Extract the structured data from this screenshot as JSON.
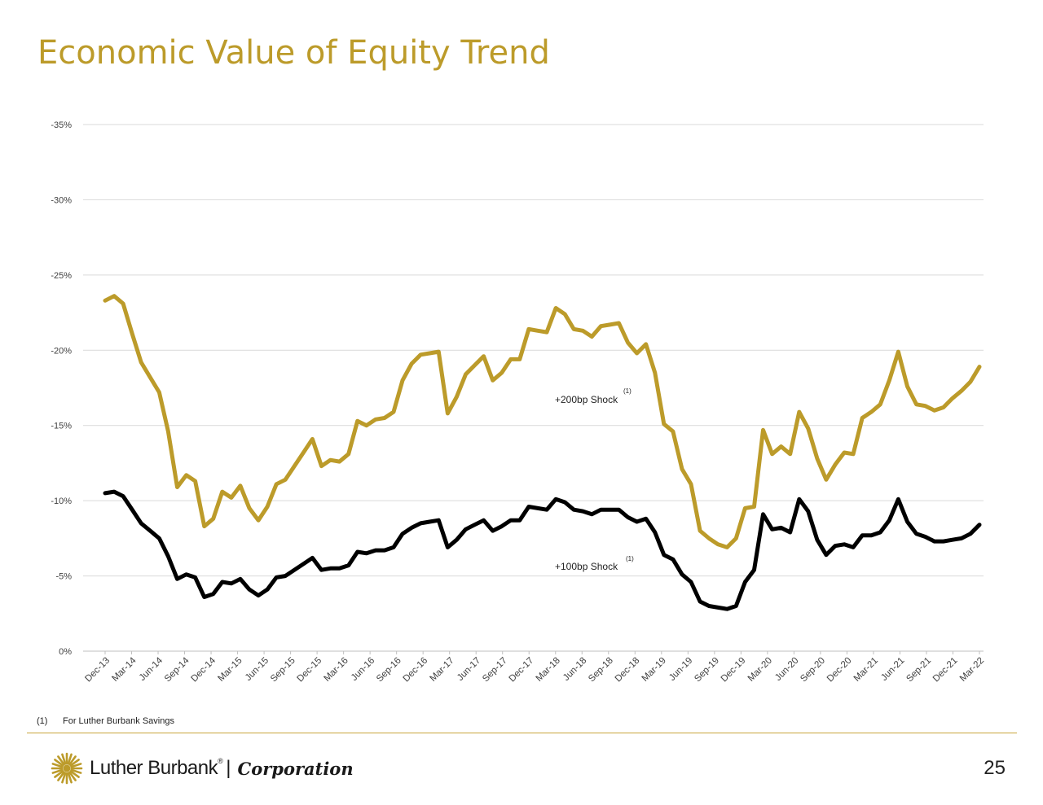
{
  "page": {
    "title": "Economic Value of Equity Trend",
    "footnote_marker": "(1)",
    "footnote_text": "For Luther Burbank Savings",
    "page_number": "25"
  },
  "brand": {
    "name": "Luther Burbank",
    "registered": "®",
    "separator": "|",
    "corporation": "Corporation",
    "accent_color": "#bc9b2a",
    "logo_icon": "sunburst-icon"
  },
  "chart_data": {
    "type": "line",
    "title": "",
    "xlabel": "",
    "ylabel": "",
    "y_ticks": [
      0,
      -5,
      -10,
      -15,
      -20,
      -25,
      -30,
      -35
    ],
    "y_tick_labels": [
      "0%",
      "-5%",
      "-10%",
      "-15%",
      "-20%",
      "-25%",
      "-30%",
      "-35%"
    ],
    "ylim": [
      0,
      -35
    ],
    "y_axis_inverted": true,
    "grid": true,
    "x_tick_labels": [
      "Dec-13",
      "Mar-14",
      "Jun-14",
      "Sep-14",
      "Dec-14",
      "Mar-15",
      "Jun-15",
      "Sep-15",
      "Dec-15",
      "Mar-16",
      "Jun-16",
      "Sep-16",
      "Dec-16",
      "Mar-17",
      "Jun-17",
      "Sep-17",
      "Dec-17",
      "Mar-18",
      "Jun-18",
      "Sep-18",
      "Dec-18",
      "Mar-19",
      "Jun-19",
      "Sep-19",
      "Dec-19",
      "Mar-20",
      "Jun-20",
      "Sep-20",
      "Dec-20",
      "Mar-21",
      "Jun-21",
      "Sep-21",
      "Dec-21",
      "Mar-22"
    ],
    "x_start": "Dec-13",
    "x_end": "Mar-22",
    "series": [
      {
        "name": "+200bp Shock",
        "label_superscript": "(1)",
        "color": "#bc9b2a",
        "values": [
          -23.3,
          -23.6,
          -23.1,
          -21.1,
          -19.2,
          -18.2,
          -17.2,
          -14.6,
          -10.9,
          -11.7,
          -11.3,
          -8.3,
          -8.8,
          -10.6,
          -10.2,
          -11.0,
          -9.5,
          -8.7,
          -9.6,
          -11.1,
          -11.4,
          -12.3,
          -13.2,
          -14.1,
          -12.3,
          -12.7,
          -12.6,
          -13.1,
          -15.3,
          -15.0,
          -15.4,
          -15.5,
          -15.9,
          -18.0,
          -19.1,
          -19.7,
          -19.8,
          -19.9,
          -15.8,
          -16.9,
          -18.4,
          -19.0,
          -19.6,
          -18.0,
          -18.5,
          -19.4,
          -19.4,
          -21.4,
          -21.3,
          -21.2,
          -22.8,
          -22.4,
          -21.4,
          -21.3,
          -20.9,
          -21.6,
          -21.7,
          -21.8,
          -20.5,
          -19.8,
          -20.4,
          -18.5,
          -15.1,
          -14.6,
          -12.1,
          -11.1,
          -8.0,
          -7.5,
          -7.1,
          -6.9,
          -7.5,
          -9.5,
          -9.6,
          -14.7,
          -13.1,
          -13.6,
          -13.1,
          -15.9,
          -14.8,
          -12.8,
          -11.4,
          -12.4,
          -13.2,
          -13.1,
          -15.5,
          -15.9,
          -16.4,
          -18.0,
          -19.9,
          -17.6,
          -16.4,
          -16.3,
          -16.0,
          -16.2,
          -16.8,
          -17.3,
          -17.9,
          -18.9
        ]
      },
      {
        "name": "+100bp Shock",
        "label_superscript": "(1)",
        "color": "#000000",
        "values": [
          -10.5,
          -10.6,
          -10.3,
          -9.4,
          -8.5,
          -8.0,
          -7.5,
          -6.3,
          -4.8,
          -5.1,
          -4.9,
          -3.6,
          -3.8,
          -4.6,
          -4.5,
          -4.8,
          -4.1,
          -3.7,
          -4.1,
          -4.9,
          -5.0,
          -5.4,
          -5.8,
          -6.2,
          -5.4,
          -5.5,
          -5.5,
          -5.7,
          -6.6,
          -6.5,
          -6.7,
          -6.7,
          -6.9,
          -7.8,
          -8.2,
          -8.5,
          -8.6,
          -8.7,
          -6.9,
          -7.4,
          -8.1,
          -8.4,
          -8.7,
          -8.0,
          -8.3,
          -8.7,
          -8.7,
          -9.6,
          -9.5,
          -9.4,
          -10.1,
          -9.9,
          -9.4,
          -9.3,
          -9.1,
          -9.4,
          -9.4,
          -9.4,
          -8.9,
          -8.6,
          -8.8,
          -7.9,
          -6.4,
          -6.1,
          -5.1,
          -4.6,
          -3.3,
          -3.0,
          -2.9,
          -2.8,
          -3.0,
          -4.6,
          -5.4,
          -9.1,
          -8.1,
          -8.2,
          -7.9,
          -10.1,
          -9.3,
          -7.4,
          -6.4,
          -7.0,
          -7.1,
          -6.9,
          -7.7,
          -7.7,
          -7.9,
          -8.7,
          -10.1,
          -8.6,
          -7.8,
          -7.6,
          -7.3,
          -7.3,
          -7.4,
          -7.5,
          -7.8,
          -8.4
        ]
      }
    ]
  }
}
